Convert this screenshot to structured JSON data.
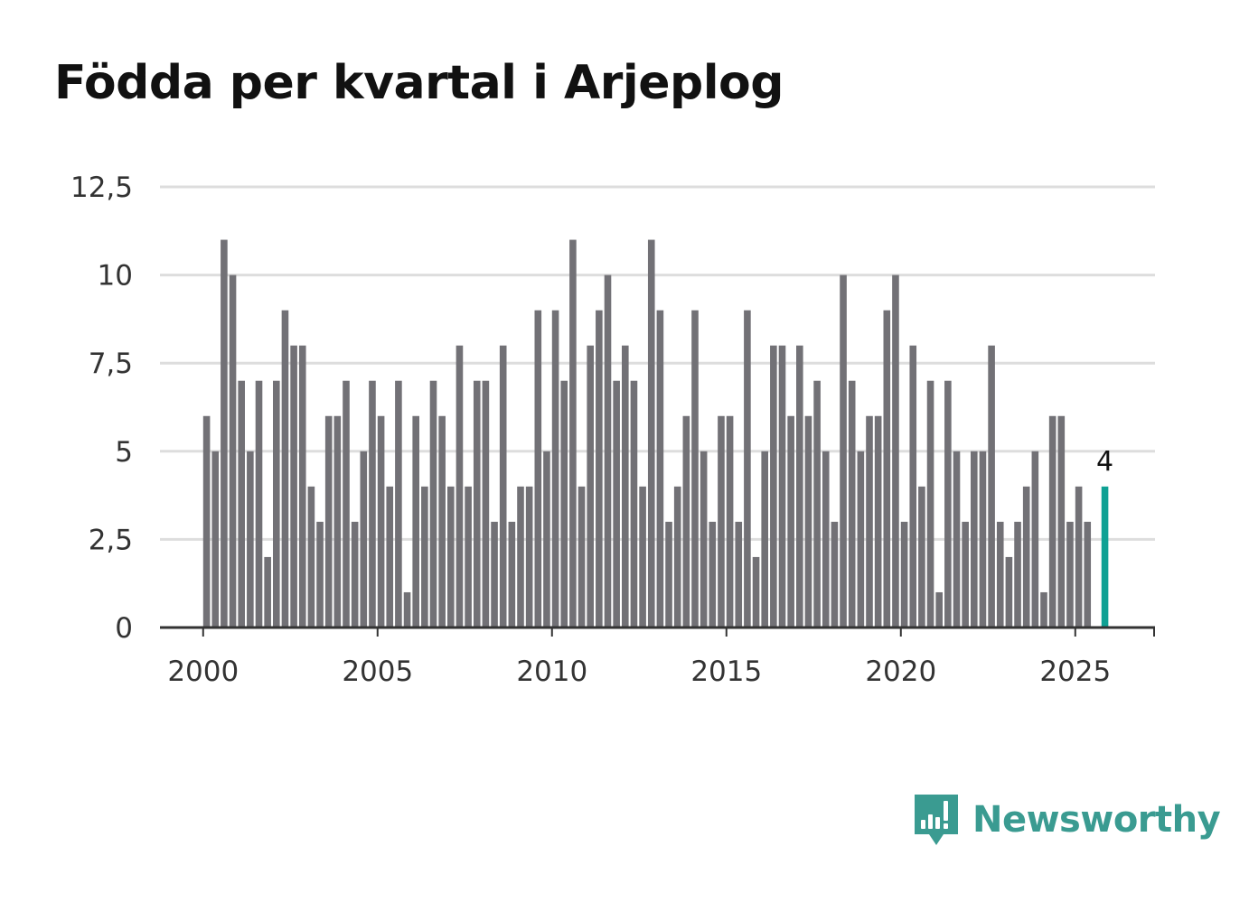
{
  "title": "Födda per kvartal i Arjeplog",
  "colors": {
    "bar": "#727176",
    "highlight": "#0fa194",
    "grid": "#dddddd",
    "axis": "#333333",
    "brand": "#3a9b91"
  },
  "brand": {
    "name": "Newsworthy",
    "icon": "newsworthy-logo-icon"
  },
  "chart_data": {
    "type": "bar",
    "title": "Födda per kvartal i Arjeplog",
    "xlabel": "",
    "ylabel": "",
    "ylim": [
      0,
      12.5
    ],
    "yticks": [
      0,
      2.5,
      5,
      7.5,
      10,
      12.5
    ],
    "ytick_labels": [
      "0",
      "2,5",
      "5",
      "7,5",
      "10",
      "12,5"
    ],
    "xticks": [
      2000,
      2005,
      2010,
      2015,
      2020,
      2025
    ],
    "xtick_labels": [
      "2000",
      "2005",
      "2010",
      "2015",
      "2020",
      "2025"
    ],
    "grid": true,
    "start": "2000 Q1",
    "highlight_last": true,
    "last_value_label": "4",
    "categories": [
      "2000 Q1",
      "2000 Q2",
      "2000 Q3",
      "2000 Q4",
      "2001 Q1",
      "2001 Q2",
      "2001 Q3",
      "2001 Q4",
      "2002 Q1",
      "2002 Q2",
      "2002 Q3",
      "2002 Q4",
      "2003 Q1",
      "2003 Q2",
      "2003 Q3",
      "2003 Q4",
      "2004 Q1",
      "2004 Q2",
      "2004 Q3",
      "2004 Q4",
      "2005 Q1",
      "2005 Q2",
      "2005 Q3",
      "2005 Q4",
      "2006 Q1",
      "2006 Q2",
      "2006 Q3",
      "2006 Q4",
      "2007 Q1",
      "2007 Q2",
      "2007 Q3",
      "2007 Q4",
      "2008 Q1",
      "2008 Q2",
      "2008 Q3",
      "2008 Q4",
      "2009 Q1",
      "2009 Q2",
      "2009 Q3",
      "2009 Q4",
      "2010 Q1",
      "2010 Q2",
      "2010 Q3",
      "2010 Q4",
      "2011 Q1",
      "2011 Q2",
      "2011 Q3",
      "2011 Q4",
      "2012 Q1",
      "2012 Q2",
      "2012 Q3",
      "2012 Q4",
      "2013 Q1",
      "2013 Q2",
      "2013 Q3",
      "2013 Q4",
      "2014 Q1",
      "2014 Q2",
      "2014 Q3",
      "2014 Q4",
      "2015 Q1",
      "2015 Q2",
      "2015 Q3",
      "2015 Q4",
      "2016 Q1",
      "2016 Q2",
      "2016 Q3",
      "2016 Q4",
      "2017 Q1",
      "2017 Q2",
      "2017 Q3",
      "2017 Q4",
      "2018 Q1",
      "2018 Q2",
      "2018 Q3",
      "2018 Q4",
      "2019 Q1",
      "2019 Q2",
      "2019 Q3",
      "2019 Q4",
      "2020 Q1",
      "2020 Q2",
      "2020 Q3",
      "2020 Q4",
      "2021 Q1",
      "2021 Q2",
      "2021 Q3",
      "2021 Q4",
      "2022 Q1",
      "2022 Q2",
      "2022 Q3",
      "2022 Q4",
      "2023 Q1",
      "2023 Q2",
      "2023 Q3",
      "2023 Q4",
      "2024 Q1",
      "2024 Q2",
      "2024 Q3",
      "2024 Q4",
      "2025 Q1",
      "2025 Q2",
      "2025 Q3",
      "2025 Q4"
    ],
    "values": [
      6,
      5,
      11,
      10,
      7,
      5,
      7,
      2,
      7,
      9,
      8,
      8,
      4,
      3,
      6,
      6,
      7,
      3,
      5,
      7,
      6,
      4,
      7,
      1,
      6,
      4,
      7,
      6,
      4,
      8,
      4,
      7,
      7,
      3,
      8,
      3,
      4,
      4,
      9,
      5,
      9,
      7,
      11,
      4,
      8,
      9,
      10,
      7,
      8,
      7,
      4,
      11,
      9,
      3,
      4,
      6,
      9,
      5,
      3,
      6,
      6,
      3,
      9,
      2,
      5,
      8,
      8,
      6,
      8,
      6,
      7,
      5,
      3,
      10,
      7,
      5,
      6,
      6,
      9,
      10,
      3,
      8,
      4,
      7,
      1,
      7,
      5,
      3,
      5,
      5,
      8,
      3,
      2,
      3,
      4,
      5,
      1,
      6,
      6,
      3,
      4,
      3,
      null,
      4
    ]
  }
}
